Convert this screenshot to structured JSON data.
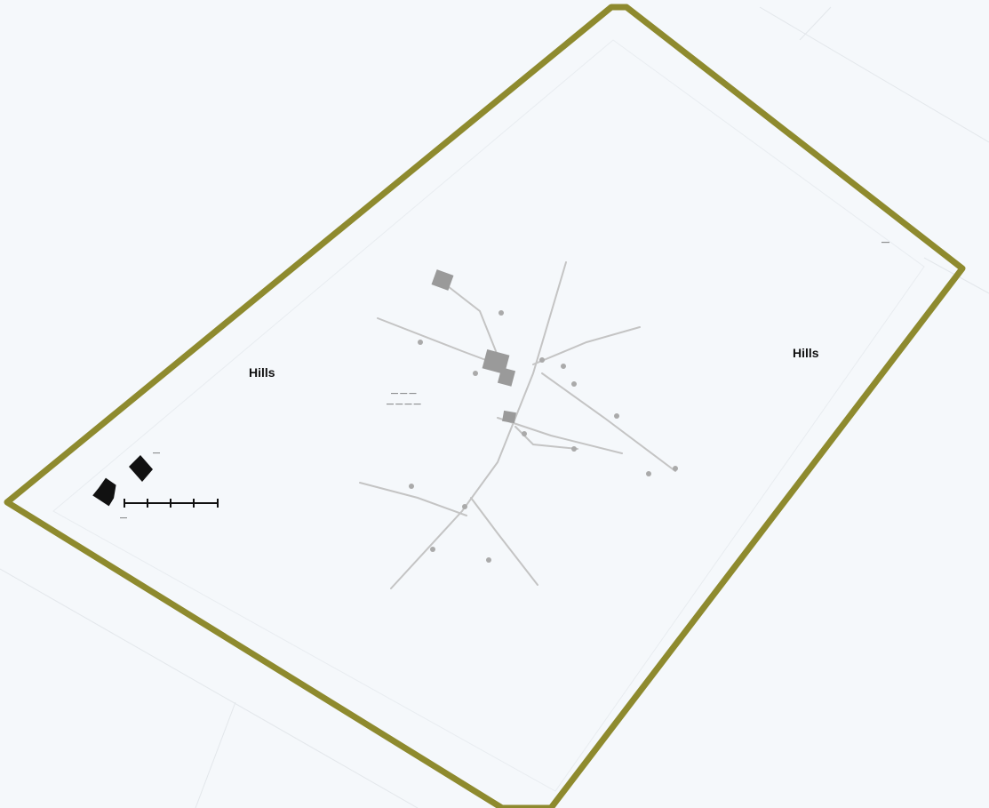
{
  "colors": {
    "background": "#f5f8fb",
    "sheet_edge": "#e6eaee",
    "boundary": "#8e8a2e",
    "features": "#b7b7b7",
    "features_dark": "#9a9a9a",
    "text": "#111111"
  },
  "labels": {
    "west": "Hills",
    "east": "Hills",
    "north_east": "—",
    "centre_line1": "— — —",
    "centre_line2": "— — — —",
    "scale_caption": "—",
    "legend_caption": "—"
  },
  "icons": {
    "north_arrow": "north-arrow-icon",
    "scale_bar": "scale-bar-icon"
  }
}
